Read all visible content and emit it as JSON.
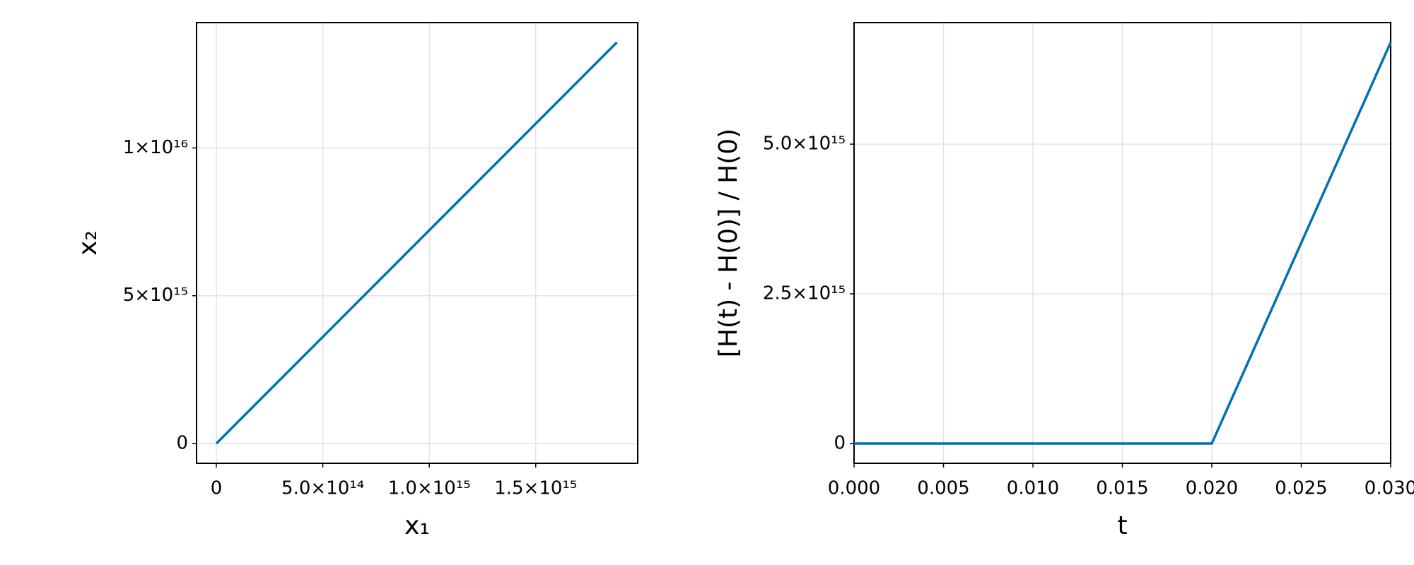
{
  "chart_data": [
    {
      "type": "line",
      "x_label": "x₁",
      "y_label": "x₂",
      "x": [
        0,
        1881000000000000.0
      ],
      "values": [
        0,
        1.357e+16
      ],
      "color": "#0072b2",
      "xlim": [
        -93000000000000.0,
        1979000000000000.0
      ],
      "ylim": [
        -670000000000000.0,
        1.424e+16
      ],
      "xticks": [
        0,
        {
          "value": 500000000000000.0,
          "label": "5.0×10¹⁴"
        },
        {
          "value": 1000000000000000.0,
          "label": "1.0×10¹⁵"
        },
        {
          "value": 1500000000000000.0,
          "label": "1.5×10¹⁵"
        }
      ],
      "yticks": [
        0,
        {
          "value": 5000000000000000.0,
          "label": "5×10¹⁵"
        },
        {
          "value": 1e+16,
          "label": "1×10¹⁶"
        }
      ],
      "grid": true
    },
    {
      "type": "line",
      "x_label": "t",
      "y_label": "[H(t) - H(0)] / H(0)",
      "x": [
        0,
        0.02,
        0.03
      ],
      "values": [
        0,
        0,
        6700000000000000.0
      ],
      "color": "#0072b2",
      "xlim": [
        0,
        0.03
      ],
      "ylim": [
        -330000000000000.0,
        7030000000000000.0
      ],
      "xticks": [
        {
          "value": 0,
          "label": "0.000"
        },
        {
          "value": 0.005,
          "label": "0.005"
        },
        {
          "value": 0.01,
          "label": "0.010"
        },
        {
          "value": 0.015,
          "label": "0.015"
        },
        {
          "value": 0.02,
          "label": "0.020"
        },
        {
          "value": 0.025,
          "label": "0.025"
        },
        {
          "value": 0.03,
          "label": "0.030"
        }
      ],
      "yticks": [
        0,
        {
          "value": 2500000000000000.0,
          "label": "2.5×10¹⁵"
        },
        {
          "value": 5000000000000000.0,
          "label": "5.0×10¹⁵"
        }
      ],
      "grid": true
    }
  ]
}
